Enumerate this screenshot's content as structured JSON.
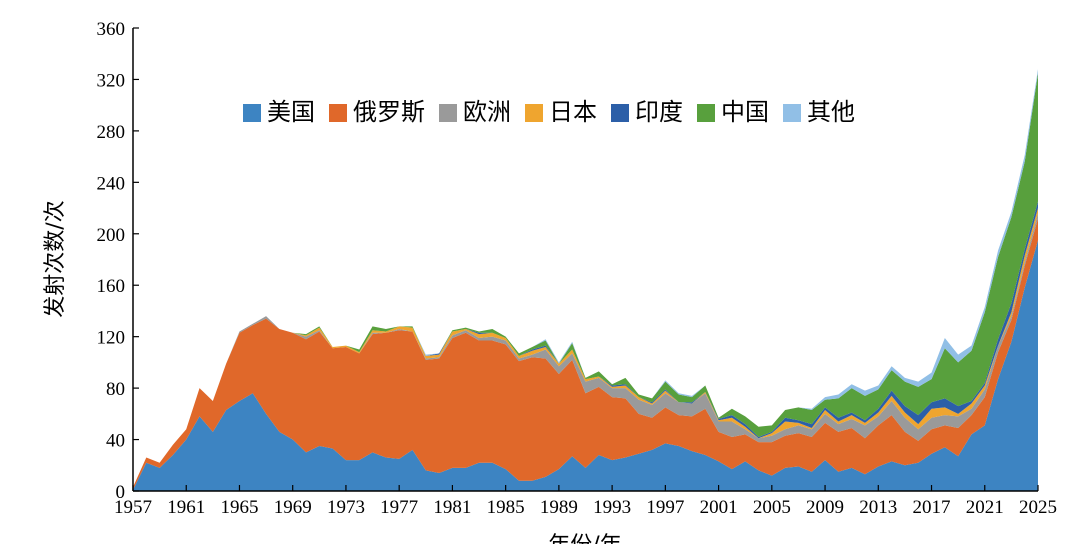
{
  "chart_data": {
    "type": "stacked-area",
    "x_label": "年份/年",
    "y_label": "发射次数/次",
    "x": [
      1957,
      1958,
      1959,
      1960,
      1961,
      1962,
      1963,
      1964,
      1965,
      1966,
      1967,
      1968,
      1969,
      1970,
      1971,
      1972,
      1973,
      1974,
      1975,
      1976,
      1977,
      1978,
      1979,
      1980,
      1981,
      1982,
      1983,
      1984,
      1985,
      1986,
      1987,
      1988,
      1989,
      1990,
      1991,
      1992,
      1993,
      1994,
      1995,
      1996,
      1997,
      1998,
      1999,
      2000,
      2001,
      2002,
      2003,
      2004,
      2005,
      2006,
      2007,
      2008,
      2009,
      2010,
      2011,
      2012,
      2013,
      2014,
      2015,
      2016,
      2017,
      2018,
      2019,
      2020,
      2021,
      2022,
      2023,
      2024,
      2025
    ],
    "xlim": [
      1957,
      2025
    ],
    "xticks": [
      1957,
      1961,
      1965,
      1969,
      1973,
      1977,
      1981,
      1985,
      1989,
      1993,
      1997,
      2001,
      2005,
      2009,
      2013,
      2017,
      2021,
      2025
    ],
    "ylim": [
      0,
      360
    ],
    "yticks": [
      0,
      40,
      80,
      120,
      160,
      200,
      240,
      280,
      320,
      360
    ],
    "legend": "top",
    "series": [
      {
        "name": "美国",
        "color": "#3d84c2",
        "values": [
          1,
          22,
          18,
          28,
          40,
          58,
          46,
          63,
          70,
          76,
          60,
          46,
          40,
          30,
          35,
          33,
          24,
          24,
          30,
          26,
          25,
          32,
          16,
          14,
          18,
          18,
          22,
          22,
          17,
          8,
          8,
          11,
          17,
          27,
          18,
          28,
          24,
          26,
          29,
          32,
          37,
          35,
          31,
          28,
          23,
          17,
          23,
          16,
          12,
          18,
          19,
          15,
          24,
          15,
          18,
          13,
          19,
          23,
          20,
          22,
          29,
          34,
          27,
          44,
          51,
          87,
          116,
          158,
          195
        ]
      },
      {
        "name": "俄罗斯",
        "color": "#e0682a",
        "values": [
          2,
          4,
          4,
          8,
          8,
          22,
          24,
          36,
          53,
          53,
          74,
          80,
          83,
          88,
          89,
          78,
          88,
          83,
          92,
          97,
          100,
          92,
          86,
          89,
          101,
          105,
          95,
          95,
          97,
          93,
          96,
          92,
          74,
          75,
          58,
          53,
          49,
          46,
          31,
          25,
          28,
          24,
          27,
          36,
          23,
          25,
          21,
          22,
          26,
          25,
          26,
          27,
          29,
          31,
          31,
          28,
          32,
          36,
          26,
          17,
          19,
          17,
          22,
          15,
          22,
          21,
          17,
          17,
          17
        ]
      },
      {
        "name": "欧洲",
        "color": "#9a9a9a",
        "values": [
          0,
          0,
          0,
          0,
          0,
          0,
          0,
          0,
          1,
          1,
          2,
          0,
          0,
          2,
          1,
          0,
          0,
          0,
          1,
          0,
          1,
          0,
          1,
          1,
          2,
          2,
          2,
          3,
          3,
          2,
          2,
          7,
          6,
          5,
          9,
          7,
          7,
          8,
          11,
          10,
          11,
          10,
          10,
          12,
          8,
          12,
          4,
          3,
          5,
          5,
          6,
          6,
          7,
          6,
          7,
          10,
          7,
          11,
          11,
          9,
          9,
          8,
          9,
          5,
          6,
          5,
          3,
          3,
          4
        ]
      },
      {
        "name": "日本",
        "color": "#efa52f",
        "values": [
          0,
          0,
          0,
          0,
          0,
          0,
          0,
          0,
          0,
          0,
          0,
          0,
          0,
          1,
          2,
          1,
          1,
          1,
          2,
          1,
          2,
          3,
          2,
          2,
          3,
          1,
          3,
          3,
          2,
          2,
          3,
          2,
          2,
          3,
          2,
          1,
          1,
          2,
          2,
          1,
          2,
          0,
          0,
          1,
          1,
          3,
          2,
          0,
          2,
          6,
          2,
          1,
          3,
          2,
          3,
          2,
          3,
          4,
          4,
          4,
          7,
          6,
          2,
          4,
          3,
          0,
          3,
          5,
          4
        ]
      },
      {
        "name": "印度",
        "color": "#2c5fa8",
        "values": [
          0,
          0,
          0,
          0,
          0,
          0,
          0,
          0,
          0,
          0,
          0,
          0,
          0,
          0,
          0,
          0,
          0,
          0,
          0,
          0,
          0,
          0,
          0,
          1,
          0,
          0,
          1,
          0,
          0,
          0,
          1,
          1,
          0,
          0,
          0,
          0,
          1,
          1,
          0,
          1,
          1,
          0,
          1,
          0,
          1,
          2,
          2,
          1,
          1,
          3,
          2,
          3,
          2,
          3,
          2,
          2,
          3,
          4,
          5,
          7,
          5,
          7,
          6,
          2,
          2,
          5,
          7,
          5,
          5
        ]
      },
      {
        "name": "中国",
        "color": "#58a03d",
        "values": [
          0,
          0,
          0,
          0,
          0,
          0,
          0,
          0,
          0,
          0,
          0,
          0,
          0,
          1,
          1,
          0,
          0,
          2,
          3,
          2,
          0,
          1,
          0,
          0,
          1,
          1,
          1,
          3,
          1,
          2,
          2,
          4,
          0,
          5,
          1,
          4,
          1,
          5,
          2,
          3,
          6,
          6,
          4,
          5,
          1,
          5,
          6,
          8,
          5,
          6,
          10,
          11,
          6,
          15,
          19,
          19,
          15,
          16,
          19,
          22,
          18,
          39,
          34,
          39,
          55,
          64,
          67,
          68,
          100
        ]
      },
      {
        "name": "其他",
        "color": "#91bfe6",
        "values": [
          0,
          0,
          0,
          0,
          0,
          0,
          0,
          0,
          0,
          0,
          0,
          0,
          0,
          0,
          0,
          0,
          0,
          0,
          0,
          0,
          0,
          0,
          1,
          0,
          0,
          0,
          0,
          0,
          0,
          0,
          0,
          1,
          1,
          1,
          0,
          0,
          0,
          0,
          0,
          0,
          1,
          1,
          1,
          0,
          0,
          0,
          0,
          0,
          0,
          0,
          0,
          1,
          2,
          3,
          3,
          4,
          3,
          3,
          3,
          4,
          5,
          8,
          6,
          4,
          4,
          5,
          4,
          5,
          3
        ]
      }
    ]
  }
}
